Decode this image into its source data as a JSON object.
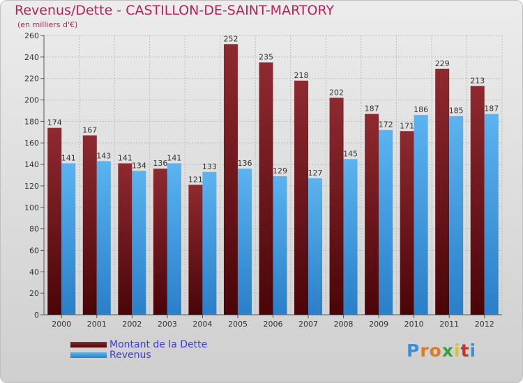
{
  "title": "Revenus/Dette - CASTILLON-DE-SAINT-MARTORY",
  "subtitle": "(en milliers d'€)",
  "logo": "Proxiti",
  "chart_data": {
    "type": "bar",
    "categories": [
      "2000",
      "2001",
      "2002",
      "2003",
      "2004",
      "2005",
      "2006",
      "2007",
      "2008",
      "2009",
      "2010",
      "2011",
      "2012"
    ],
    "series": [
      {
        "name": "Montant de la Dette",
        "values": [
          174,
          167,
          141,
          136,
          121,
          252,
          235,
          218,
          202,
          187,
          171,
          229,
          213
        ],
        "color": "#7d1a1f"
      },
      {
        "name": "Revenus",
        "values": [
          141,
          143,
          134,
          141,
          133,
          136,
          129,
          127,
          145,
          172,
          186,
          185,
          187
        ],
        "color": "#4aa3e6"
      }
    ],
    "y_ticks": [
      0,
      20,
      40,
      60,
      80,
      100,
      120,
      140,
      160,
      180,
      200,
      220,
      240,
      260
    ],
    "ylim": [
      0,
      260
    ],
    "grid": true,
    "legend_position": "bottom-left"
  }
}
